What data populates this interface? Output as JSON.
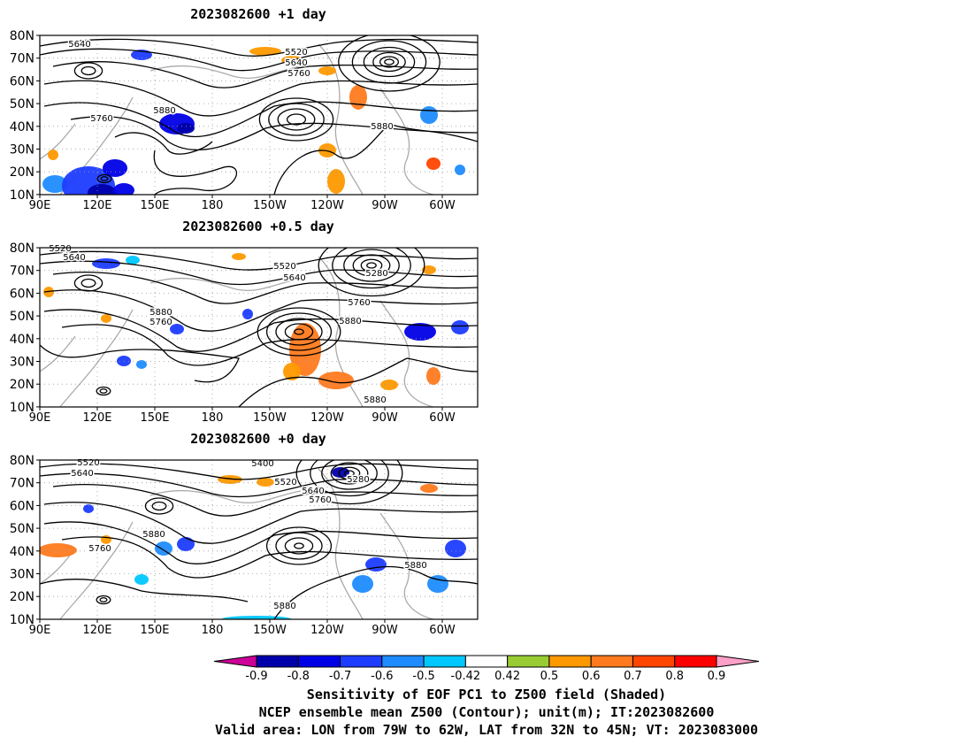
{
  "panels": [
    {
      "title": "2023082600  +1 day",
      "contour_labels": [
        "5640",
        "5520",
        "5640",
        "5760",
        "5880",
        "5760",
        "5880"
      ]
    },
    {
      "title": "2023082600  +0.5 day",
      "contour_labels": [
        "5520",
        "5640",
        "5520",
        "5280",
        "5640",
        "5760",
        "5880",
        "5760",
        "5880",
        "5880"
      ]
    },
    {
      "title": "2023082600  +0 day",
      "contour_labels": [
        "5520",
        "5640",
        "5400",
        "5280",
        "5520",
        "5640",
        "5760",
        "5880",
        "5760",
        "5880",
        "5880"
      ]
    }
  ],
  "axes": {
    "lat_ticks": [
      "80N",
      "70N",
      "60N",
      "50N",
      "40N",
      "30N",
      "20N",
      "10N"
    ],
    "lon_ticks": [
      "90E",
      "120E",
      "150E",
      "180",
      "150W",
      "120W",
      "90W",
      "60W"
    ]
  },
  "colorbar": {
    "labels": [
      "-0.9",
      "-0.8",
      "-0.7",
      "-0.6",
      "-0.5",
      "-0.42",
      "0.42",
      "0.5",
      "0.6",
      "0.7",
      "0.8",
      "0.9"
    ],
    "colors": [
      "#0000aa",
      "#0000e6",
      "#1e3cff",
      "#1e8cff",
      "#00c8ff",
      "#ffffff",
      "#99cc33",
      "#ff9900",
      "#ff7a1e",
      "#ff4500",
      "#ff0000"
    ],
    "low_end_color": "#cc0099",
    "high_end_color": "#ffa0c8"
  },
  "footer": {
    "line1": "Sensitivity of EOF PC1 to Z500 field (Shaded)",
    "line2": "NCEP ensemble mean Z500 (Contour); unit(m); IT:2023082600",
    "line3": "Valid area: LON from 79W to 62W, LAT from 32N to 45N; VT: 2023083000"
  },
  "map_style": {
    "contour_color": "#000000",
    "coast_color": "#aaaaaa",
    "grid_color": "#999999"
  }
}
